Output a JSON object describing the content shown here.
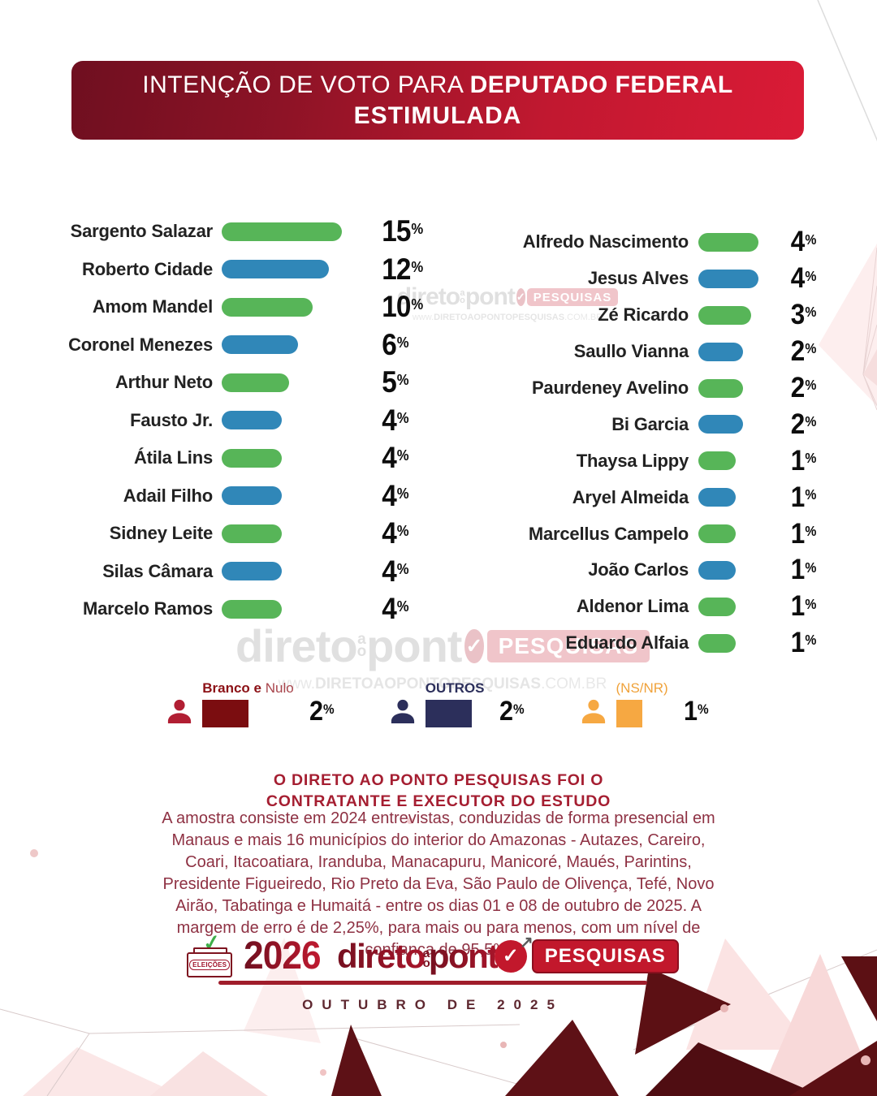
{
  "header": {
    "title_regular": "INTENÇÃO DE VOTO PARA ",
    "title_bold": "DEPUTADO FEDERAL",
    "subtitle": "ESTIMULADA"
  },
  "chart_data": {
    "type": "bar",
    "orientation": "horizontal",
    "title": "Intenção de voto para Deputado Federal - Estimulada",
    "unit": "%",
    "palette": {
      "green": "#57b558",
      "blue": "#3087b8"
    },
    "columns": [
      {
        "rows": [
          {
            "name": "Sargento Salazar",
            "value": 15,
            "color": "green"
          },
          {
            "name": "Roberto Cidade",
            "value": 12,
            "color": "blue"
          },
          {
            "name": "Amom Mandel",
            "value": 10,
            "color": "green"
          },
          {
            "name": "Coronel Menezes",
            "value": 6,
            "color": "blue"
          },
          {
            "name": "Arthur Neto",
            "value": 5,
            "color": "green"
          },
          {
            "name": "Fausto Jr.",
            "value": 4,
            "color": "blue"
          },
          {
            "name": "Átila Lins",
            "value": 4,
            "color": "green"
          },
          {
            "name": "Adail Filho",
            "value": 4,
            "color": "blue"
          },
          {
            "name": "Sidney Leite",
            "value": 4,
            "color": "green"
          },
          {
            "name": "Silas Câmara",
            "value": 4,
            "color": "blue"
          },
          {
            "name": "Marcelo Ramos",
            "value": 4,
            "color": "green"
          }
        ]
      },
      {
        "rows": [
          {
            "name": "Alfredo Nascimento",
            "value": 4,
            "color": "green"
          },
          {
            "name": "Jesus Alves",
            "value": 4,
            "color": "blue"
          },
          {
            "name": "Zé Ricardo",
            "value": 3,
            "color": "green"
          },
          {
            "name": "Saullo Vianna",
            "value": 2,
            "color": "blue"
          },
          {
            "name": "Paurdeney Avelino",
            "value": 2,
            "color": "green"
          },
          {
            "name": "Bi Garcia",
            "value": 2,
            "color": "blue"
          },
          {
            "name": "Thaysa Lippy",
            "value": 1,
            "color": "green"
          },
          {
            "name": "Aryel Almeida",
            "value": 1,
            "color": "blue"
          },
          {
            "name": "Marcellus Campelo",
            "value": 1,
            "color": "green"
          },
          {
            "name": "João Carlos",
            "value": 1,
            "color": "blue"
          },
          {
            "name": "Aldenor Lima",
            "value": 1,
            "color": "green"
          },
          {
            "name": "Eduardo Alfaia",
            "value": 1,
            "color": "green"
          }
        ]
      }
    ],
    "legend": [
      {
        "label_bold": "Branco e",
        "label_rest": " Nulo",
        "value": 2,
        "swatch": "#7b0d10",
        "icon": "#b11e33",
        "label_color": "#8c1116",
        "rest_color": "#a8454c"
      },
      {
        "label_bold": "OUTROS",
        "label_rest": "",
        "value": 2,
        "swatch": "#2c2f5b",
        "icon": "#2c2f5b",
        "label_color": "#2c2f5b",
        "rest_color": "#2c2f5b"
      },
      {
        "label_bold": "",
        "label_rest": "(NS/NR)",
        "value": 1,
        "swatch": "#f6a842",
        "icon": "#f6a842",
        "label_color": "#f0a23a",
        "rest_color": "#f0a23a"
      }
    ]
  },
  "watermark": {
    "brand_left": "direto",
    "brand_mid_top": "a",
    "brand_mid_bottom": "o",
    "brand_right": "pont",
    "check": "✓",
    "badge": "PESQUISAS",
    "url_prefix": "www.",
    "url_main": "DIRETOAOPONTOPESQUISAS",
    "url_suffix": ".COM.BR"
  },
  "study_note": {
    "heading_line1": "O DIRETO AO PONTO PESQUISAS FOI O",
    "heading_line2": "CONTRATANTE E EXECUTOR DO ESTUDO",
    "body": "A amostra consiste em 2024 entrevistas, conduzidas de forma presencial em Manaus e mais 16 municípios do interior do Amazonas - Autazes, Careiro, Coari, Itacoatiara, Iranduba, Manacapuru, Manicoré, Maués, Parintins, Presidente Figueiredo, Rio Preto da Eva, São Paulo de Olivença, Tefé, Novo Airão, Tabatinga e Humaitá - entre os dias 01 e 08 de outubro de 2025. A margem de erro é de 2,25%, para mais ou para menos, com um nível de confiança de 95,5%."
  },
  "footer": {
    "eleicoes_label": "ELEIÇÕES",
    "check": "✓",
    "year": "2026",
    "brand_left": "direto",
    "brand_mid_top": "a",
    "brand_mid_bottom": "o",
    "brand_right": "pont",
    "badge": "PESQUISAS",
    "arrow": "↗",
    "date_label": "OUTUBRO DE 2025"
  },
  "colors": {
    "green_bar": "#57b558",
    "blue_bar": "#3087b8",
    "banner_dark": "#6f0f20",
    "banner_bright": "#da1b36",
    "note_heading": "#a51e31",
    "note_body": "#8e3143",
    "footer_line": "#a01d2b",
    "decor_dark": "#5c1014",
    "decor_pink": "#fbe3e3"
  }
}
